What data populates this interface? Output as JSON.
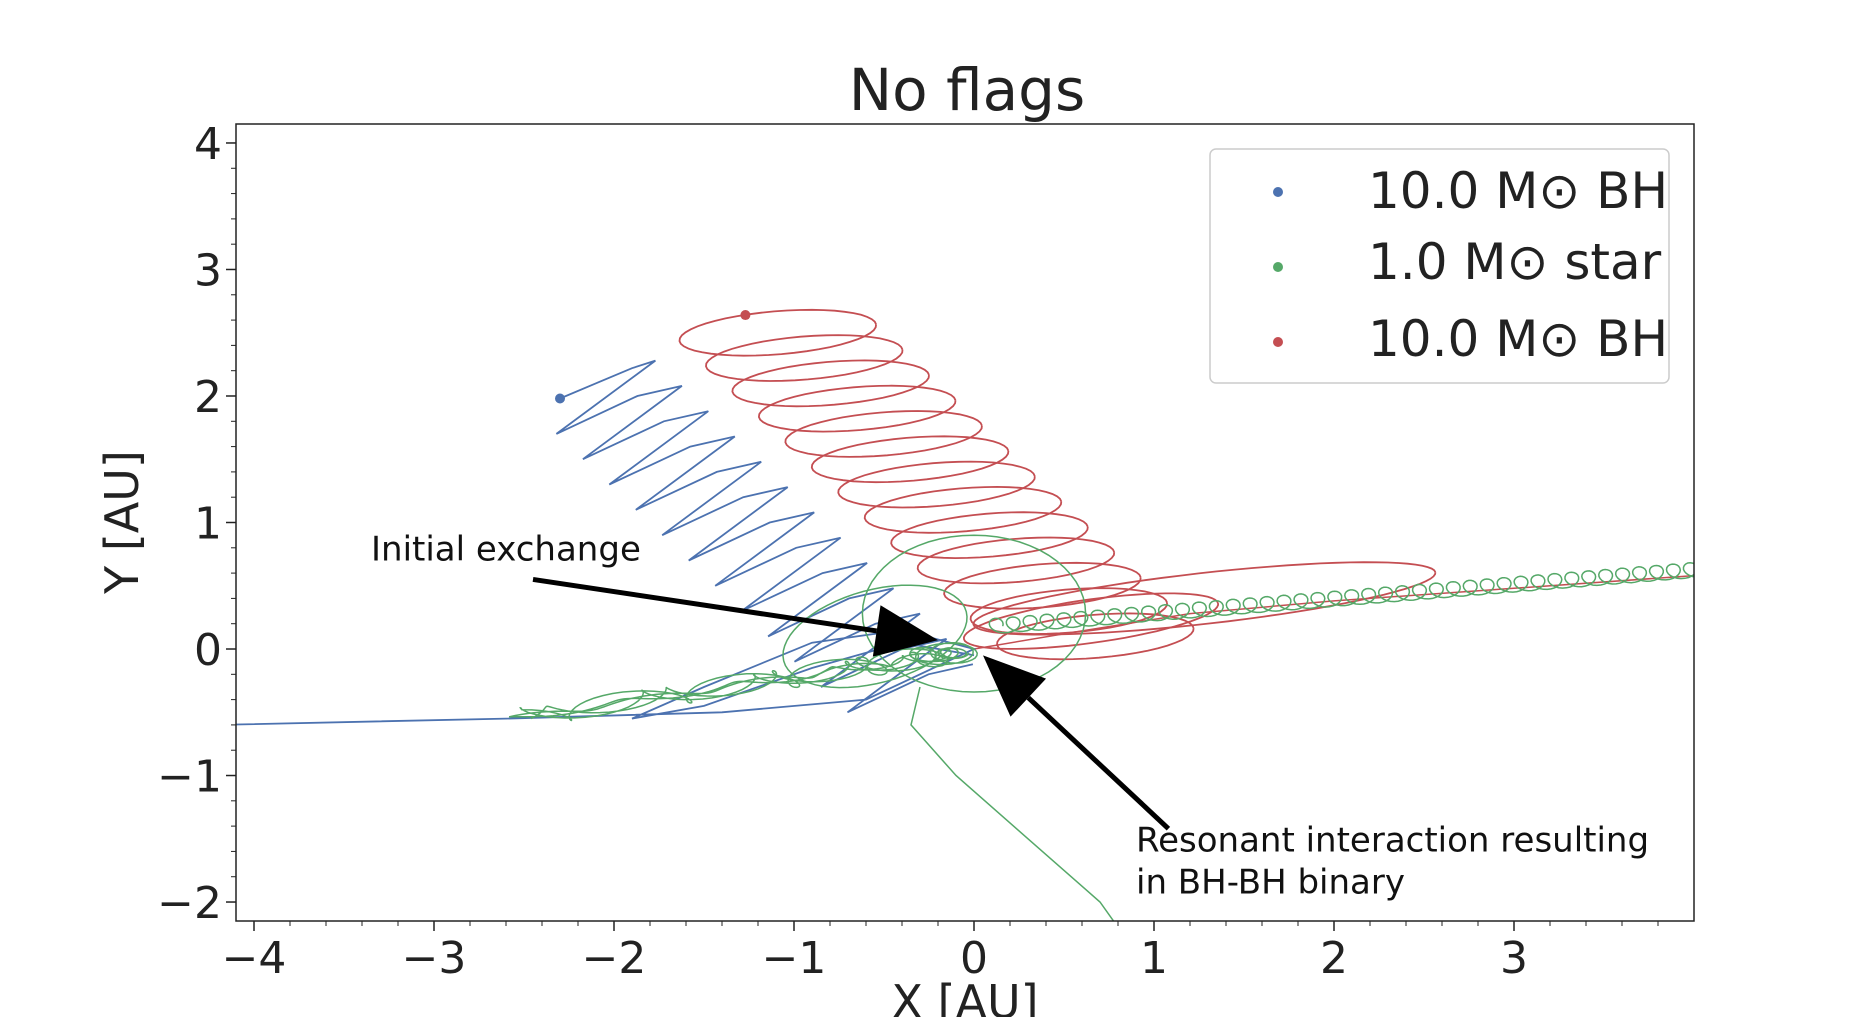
{
  "chart_data": {
    "type": "line",
    "title": "No flags",
    "xlabel": "X [AU]",
    "ylabel": "Y [AU]",
    "xlim": [
      -4.1,
      4.0
    ],
    "ylim": [
      -2.15,
      4.15
    ],
    "xticks": [
      -4,
      -3,
      -2,
      -1,
      0,
      1,
      2,
      3
    ],
    "xtick_labels": [
      "−4",
      "−3",
      "−2",
      "−1",
      "0",
      "1",
      "2",
      "3"
    ],
    "yticks": [
      -2,
      -1,
      0,
      1,
      2,
      3,
      4
    ],
    "ytick_labels": [
      "−2",
      "−1",
      "0",
      "1",
      "2",
      "3",
      "4"
    ],
    "grid": false,
    "legend_position": "upper-right",
    "series": [
      {
        "name": "10.0 M⊙ BH",
        "color": "#4c72b0",
        "start": [
          -2.3,
          1.98
        ]
      },
      {
        "name": "1.0 M⊙ star",
        "color": "#55a868",
        "start": [
          0.0,
          0.0
        ]
      },
      {
        "name": "10.0 M⊙ BH",
        "color": "#c44e52",
        "start": [
          -1.27,
          2.64
        ]
      }
    ],
    "annotations": [
      {
        "text": "Initial exchange",
        "text_at": [
          -3.35,
          0.7
        ],
        "arrow_from": [
          -2.45,
          0.55
        ],
        "arrow_to": [
          -0.2,
          0.07
        ]
      },
      {
        "text_lines": [
          "Resonant interaction resulting",
          "in BH-BH binary"
        ],
        "text_at": [
          0.9,
          -1.6
        ],
        "arrow_from": [
          1.08,
          -1.42
        ],
        "arrow_to": [
          0.05,
          -0.05
        ]
      }
    ]
  }
}
